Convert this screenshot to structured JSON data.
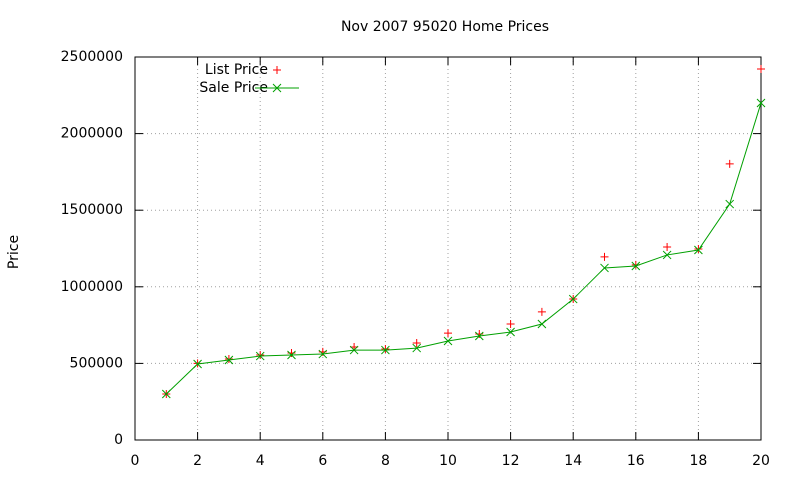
{
  "chart_data": {
    "type": "line",
    "title": "Nov 2007 95020 Home Prices",
    "y_label": "Price",
    "x": [
      1,
      2,
      3,
      4,
      5,
      6,
      7,
      8,
      9,
      10,
      11,
      12,
      13,
      14,
      15,
      16,
      17,
      18,
      19,
      20
    ],
    "series": [
      {
        "name": "List Price",
        "color": "#ff0000",
        "style": "points",
        "marker": "plus",
        "values": [
          300000,
          500000,
          529000,
          555000,
          568000,
          575000,
          607000,
          594000,
          633000,
          698000,
          692000,
          757000,
          836000,
          920000,
          1195000,
          1143000,
          1260000,
          1247000,
          1802000,
          2422000
        ]
      },
      {
        "name": "Sale Price",
        "color": "#00a000",
        "style": "linespoints",
        "marker": "cross",
        "values": [
          300000,
          496000,
          522000,
          548000,
          555000,
          561000,
          587000,
          587000,
          600000,
          646000,
          679000,
          705000,
          757000,
          920000,
          1123000,
          1136000,
          1208000,
          1240000,
          1540000,
          2200000
        ]
      }
    ],
    "xlim": [
      0,
      20
    ],
    "xticks": [
      0,
      2,
      4,
      6,
      8,
      10,
      12,
      14,
      16,
      18,
      20
    ],
    "ylim": [
      0,
      2500000
    ],
    "yticks": [
      0,
      500000,
      1000000,
      1500000,
      2000000,
      2500000
    ],
    "grid": true,
    "legend": "top-left"
  }
}
